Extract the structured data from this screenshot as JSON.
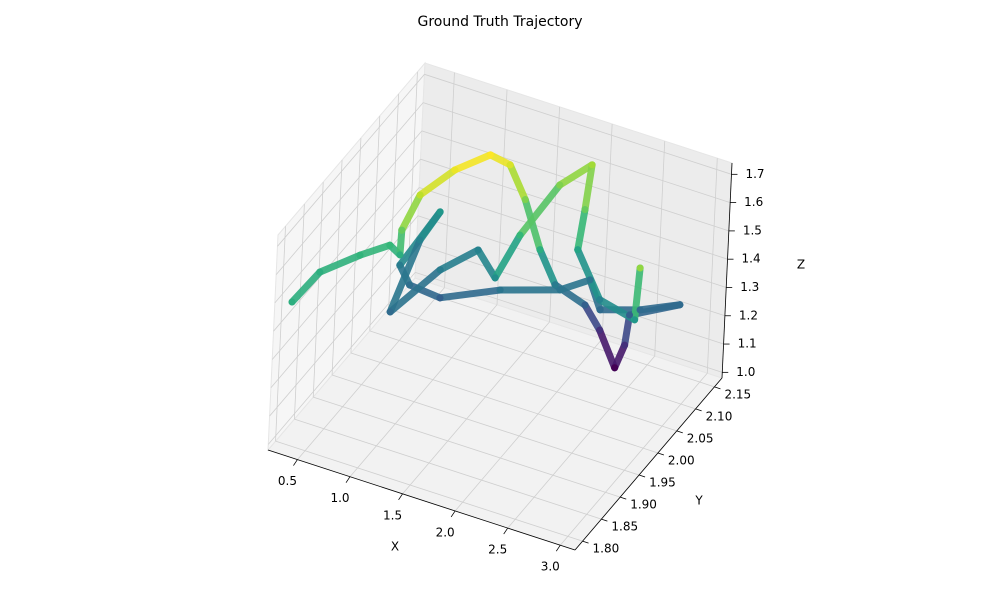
{
  "chart_data": {
    "type": "scatter3d",
    "title": "Ground Truth Trajectory",
    "x_label": "X",
    "y_label": "Y",
    "z_label": "Z",
    "xlim": [
      0.22,
      3.14
    ],
    "ylim": [
      1.78,
      2.17
    ],
    "zlim": [
      0.98,
      1.74
    ],
    "xticks": [
      0.5,
      {
        "value": 1.0,
        "label": "1.0"
      },
      1.5,
      {
        "value": 2.0,
        "label": "2.0"
      },
      2.5,
      {
        "value": 3.0,
        "label": "3.0"
      }
    ],
    "yticks": [
      {
        "value": 1.8,
        "label": "1.80"
      },
      1.85,
      {
        "value": 1.9,
        "label": "1.90"
      },
      1.95,
      {
        "value": 2.0,
        "label": "2.00"
      },
      2.05,
      {
        "value": 2.1,
        "label": "2.10"
      },
      2.15
    ],
    "zticks": [
      {
        "value": 1.0,
        "label": "1.0"
      },
      1.1,
      1.2,
      1.3,
      1.4,
      1.5,
      1.6,
      1.7
    ],
    "colormap": "viridis",
    "grid": true,
    "x": [
      0.257,
      0.274,
      0.499,
      0.675,
      0.76,
      0.787,
      0.87,
      1.055,
      1.257,
      1.4,
      1.563,
      1.77,
      1.85,
      2.065,
      2.13,
      2.31,
      2.41,
      2.46,
      2.82,
      2.556,
      2.258,
      2.045,
      1.885,
      1.44,
      0.94,
      0.7,
      0.57,
      0.667,
      0.594,
      0.71,
      0.9,
      1.09,
      1.445,
      1.58,
      1.727,
      1.907,
      2.02,
      2.0,
      2.31,
      2.8,
      2.886
    ],
    "y": [
      1.817,
      1.886,
      1.929,
      1.959,
      1.963,
      1.957,
      1.979,
      2.018,
      2.055,
      2.069,
      2.067,
      2.053,
      2.076,
      2.098,
      2.123,
      2.116,
      2.111,
      2.106,
      2.138,
      2.106,
      2.083,
      2.115,
      2.08,
      2.045,
      2.027,
      2.012,
      2.021,
      2.098,
      2.067,
      1.958,
      2.036,
      2.083,
      2.028,
      2.052,
      2.113,
      2.147,
      2.099,
      2.09,
      2.065,
      2.019,
      2.002
    ],
    "z": [
      1.45,
      1.45,
      1.47,
      1.48,
      1.45,
      1.55,
      1.65,
      1.7,
      1.72,
      1.68,
      1.58,
      1.45,
      1.3,
      1.22,
      1.1,
      1.0,
      1.1,
      1.22,
      1.25,
      1.25,
      1.25,
      1.28,
      1.28,
      1.28,
      1.22,
      1.26,
      1.3,
      1.38,
      1.32,
      1.25,
      1.3,
      1.32,
      1.35,
      1.48,
      1.58,
      1.62,
      1.55,
      1.42,
      1.32,
      1.38,
      1.6
    ]
  }
}
